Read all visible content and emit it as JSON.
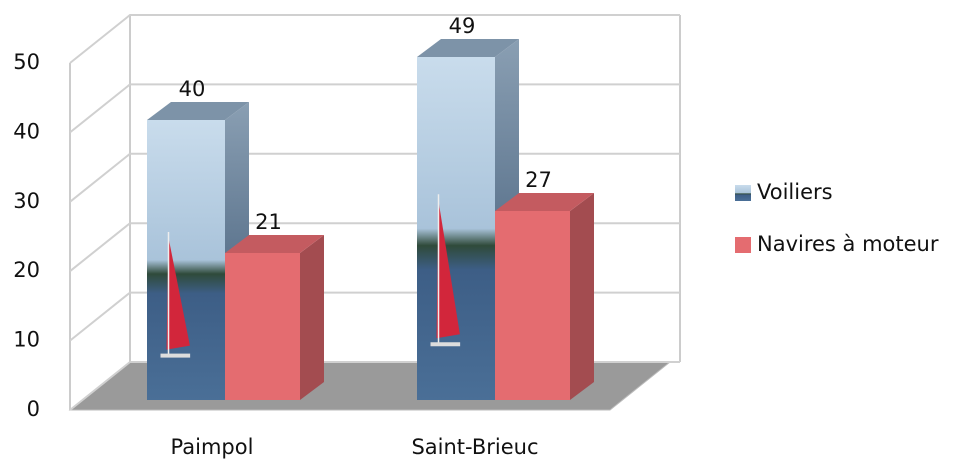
{
  "chart_data": {
    "type": "bar3d",
    "categories": [
      "Paimpol",
      "Saint-Brieuc"
    ],
    "series": [
      {
        "name": "Voiliers",
        "color": "#6a8fb5",
        "values": [
          40,
          49
        ]
      },
      {
        "name": "Navires à moteur",
        "color": "#e46c70",
        "values": [
          21,
          27
        ]
      }
    ],
    "ylim": [
      0,
      50
    ],
    "yticks": [
      0,
      10,
      20,
      30,
      40,
      50
    ],
    "grid": true,
    "legend": "right"
  }
}
